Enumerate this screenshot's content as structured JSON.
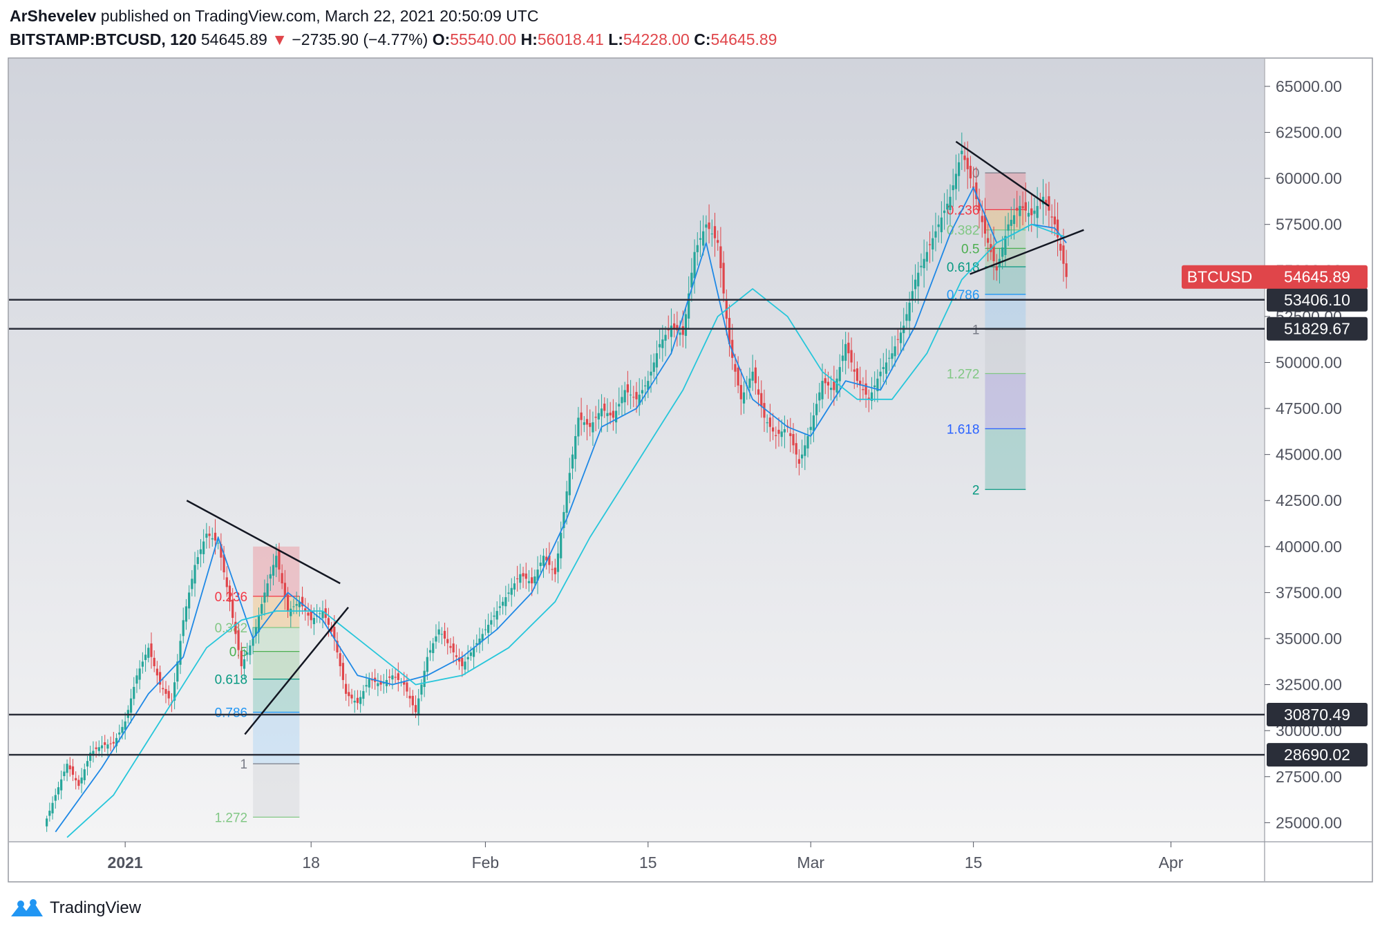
{
  "header": {
    "author": "ArShevelev",
    "published_text": "published on TradingView.com, March 22, 2021 20:50:09 UTC",
    "symbol": "BITSTAMP:BTCUSD, 120",
    "last": "54645.89",
    "change": "−2735.90 (−4.77%)",
    "open_label": "O:",
    "open": "55540.00",
    "high_label": "H:",
    "high": "56018.41",
    "low_label": "L:",
    "low": "54228.00",
    "close_label": "C:",
    "close": "54645.89"
  },
  "footer": {
    "brand": "TradingView",
    "logo_icon": "tradingview-logo-icon"
  },
  "colors": {
    "up": "#26a69a",
    "down": "#e0454a",
    "ema_fast": "#1e88e5",
    "ema_slow": "#26c6da",
    "price_tag": "#e0454a",
    "level_tag": "#2a2e39"
  },
  "chart_data": {
    "type": "candlestick",
    "ylim": [
      24000,
      66500
    ],
    "x_axis": {
      "range_days": [
        -9,
        99
      ],
      "ticks": [
        {
          "label": "2021",
          "day": 1
        },
        {
          "label": "18",
          "day": 17
        },
        {
          "label": "Feb",
          "day": 32
        },
        {
          "label": "15",
          "day": 46
        },
        {
          "label": "Mar",
          "day": 60
        },
        {
          "label": "15",
          "day": 74
        },
        {
          "label": "Apr",
          "day": 91
        }
      ]
    },
    "y_ticks": [
      25000,
      27500,
      30000,
      32500,
      35000,
      37500,
      40000,
      42500,
      45000,
      47500,
      50000,
      52500,
      55000,
      57500,
      60000,
      62500,
      65000
    ],
    "price_path": [
      [
        -6,
        24800
      ],
      [
        -5,
        26500
      ],
      [
        -4,
        28200
      ],
      [
        -3,
        27000
      ],
      [
        -2,
        28800
      ],
      [
        -1,
        29200
      ],
      [
        0,
        29300
      ],
      [
        1,
        30500
      ],
      [
        2,
        33000
      ],
      [
        3,
        34500
      ],
      [
        4,
        32500
      ],
      [
        5,
        31500
      ],
      [
        6,
        36000
      ],
      [
        7,
        39000
      ],
      [
        8,
        40700
      ],
      [
        9,
        40200
      ],
      [
        10,
        37000
      ],
      [
        11,
        33500
      ],
      [
        12,
        35000
      ],
      [
        13,
        37500
      ],
      [
        14,
        39500
      ],
      [
        15,
        36500
      ],
      [
        16,
        37000
      ],
      [
        17,
        36000
      ],
      [
        18,
        36500
      ],
      [
        19,
        35000
      ],
      [
        20,
        32000
      ],
      [
        21,
        31500
      ],
      [
        22,
        32800
      ],
      [
        23,
        32500
      ],
      [
        24,
        33000
      ],
      [
        25,
        32500
      ],
      [
        26,
        31000
      ],
      [
        27,
        34000
      ],
      [
        28,
        35500
      ],
      [
        29,
        34500
      ],
      [
        30,
        33500
      ],
      [
        31,
        34500
      ],
      [
        32,
        35500
      ],
      [
        33,
        36500
      ],
      [
        34,
        37500
      ],
      [
        35,
        38500
      ],
      [
        36,
        38000
      ],
      [
        37,
        39500
      ],
      [
        38,
        38500
      ],
      [
        39,
        43000
      ],
      [
        40,
        47000
      ],
      [
        41,
        46500
      ],
      [
        42,
        47500
      ],
      [
        43,
        47000
      ],
      [
        44,
        48500
      ],
      [
        45,
        48000
      ],
      [
        46,
        49000
      ],
      [
        47,
        51000
      ],
      [
        48,
        52000
      ],
      [
        49,
        51500
      ],
      [
        50,
        56000
      ],
      [
        51,
        57500
      ],
      [
        52,
        56500
      ],
      [
        53,
        51000
      ],
      [
        54,
        48000
      ],
      [
        55,
        49500
      ],
      [
        56,
        47000
      ],
      [
        57,
        46000
      ],
      [
        58,
        46500
      ],
      [
        59,
        44500
      ],
      [
        60,
        46500
      ],
      [
        61,
        49000
      ],
      [
        62,
        48500
      ],
      [
        63,
        51000
      ],
      [
        64,
        49000
      ],
      [
        65,
        48000
      ],
      [
        66,
        49500
      ],
      [
        67,
        50500
      ],
      [
        68,
        52000
      ],
      [
        69,
        54500
      ],
      [
        70,
        56000
      ],
      [
        71,
        57500
      ],
      [
        72,
        59000
      ],
      [
        73,
        61500
      ],
      [
        74,
        59500
      ],
      [
        75,
        57000
      ],
      [
        76,
        55000
      ],
      [
        77,
        57500
      ],
      [
        78,
        58500
      ],
      [
        79,
        58000
      ],
      [
        80,
        59000
      ],
      [
        81,
        57500
      ],
      [
        82,
        54645.89
      ]
    ],
    "ema_fast": [
      [
        -5,
        24500
      ],
      [
        -1,
        28000
      ],
      [
        3,
        32000
      ],
      [
        6,
        34000
      ],
      [
        9,
        40500
      ],
      [
        12,
        35000
      ],
      [
        15,
        37500
      ],
      [
        18,
        36000
      ],
      [
        21,
        33000
      ],
      [
        24,
        32500
      ],
      [
        27,
        33000
      ],
      [
        30,
        34000
      ],
      [
        33,
        35500
      ],
      [
        36,
        37500
      ],
      [
        39,
        41500
      ],
      [
        42,
        46500
      ],
      [
        45,
        47500
      ],
      [
        48,
        50500
      ],
      [
        51,
        56500
      ],
      [
        53,
        51000
      ],
      [
        55,
        48000
      ],
      [
        58,
        46500
      ],
      [
        60,
        46000
      ],
      [
        63,
        49000
      ],
      [
        66,
        48500
      ],
      [
        69,
        52000
      ],
      [
        72,
        57000
      ],
      [
        74,
        59500
      ],
      [
        76,
        56500
      ],
      [
        79,
        57500
      ],
      [
        81,
        57300
      ],
      [
        82,
        56500
      ]
    ],
    "ema_slow": [
      [
        -4,
        24200
      ],
      [
        0,
        26500
      ],
      [
        4,
        30500
      ],
      [
        8,
        34500
      ],
      [
        11,
        36000
      ],
      [
        14,
        36500
      ],
      [
        18,
        36500
      ],
      [
        22,
        34500
      ],
      [
        26,
        32500
      ],
      [
        30,
        33000
      ],
      [
        34,
        34500
      ],
      [
        38,
        37000
      ],
      [
        41,
        40500
      ],
      [
        45,
        44500
      ],
      [
        49,
        48500
      ],
      [
        52,
        52500
      ],
      [
        55,
        54000
      ],
      [
        58,
        52500
      ],
      [
        61,
        49500
      ],
      [
        64,
        48000
      ],
      [
        67,
        48000
      ],
      [
        70,
        50500
      ],
      [
        73,
        54500
      ],
      [
        76,
        56500
      ],
      [
        79,
        57500
      ],
      [
        82,
        56800
      ]
    ],
    "horizontal_levels": [
      53406.1,
      51829.67,
      30870.49,
      28690.02
    ],
    "last_price_label": {
      "symbol": "BTCUSD",
      "value": "54645.89"
    },
    "fib_retracements": [
      {
        "day_start": 12,
        "day_end": 16,
        "high": 40000,
        "low": 30500,
        "level_labels": [
          "0.236",
          "0.382",
          "0.5",
          "0.618",
          "0.786",
          "1",
          "1.272"
        ],
        "level_prices": [
          37300,
          35600,
          34300,
          32800,
          31000,
          28200,
          25300
        ]
      },
      {
        "day_start": 75,
        "day_end": 78.5,
        "high": 60300,
        "low": 53500,
        "level_labels": [
          "0",
          "0.236",
          "0.382",
          "0.5",
          "0.618",
          "0.786",
          "1",
          "1.272",
          "1.618",
          "2"
        ],
        "level_prices": [
          60300,
          58300,
          57200,
          56200,
          55200,
          53700,
          51800,
          49400,
          46400,
          43100
        ]
      }
    ],
    "trendlines": [
      {
        "from": [
          6.3,
          42500
        ],
        "to": [
          19.5,
          38000
        ]
      },
      {
        "from": [
          11.3,
          29800
        ],
        "to": [
          20.2,
          36700
        ]
      },
      {
        "from": [
          72.5,
          62000
        ],
        "to": [
          80.5,
          58500
        ]
      },
      {
        "from": [
          73.7,
          54800
        ],
        "to": [
          83.5,
          57200
        ]
      }
    ]
  }
}
